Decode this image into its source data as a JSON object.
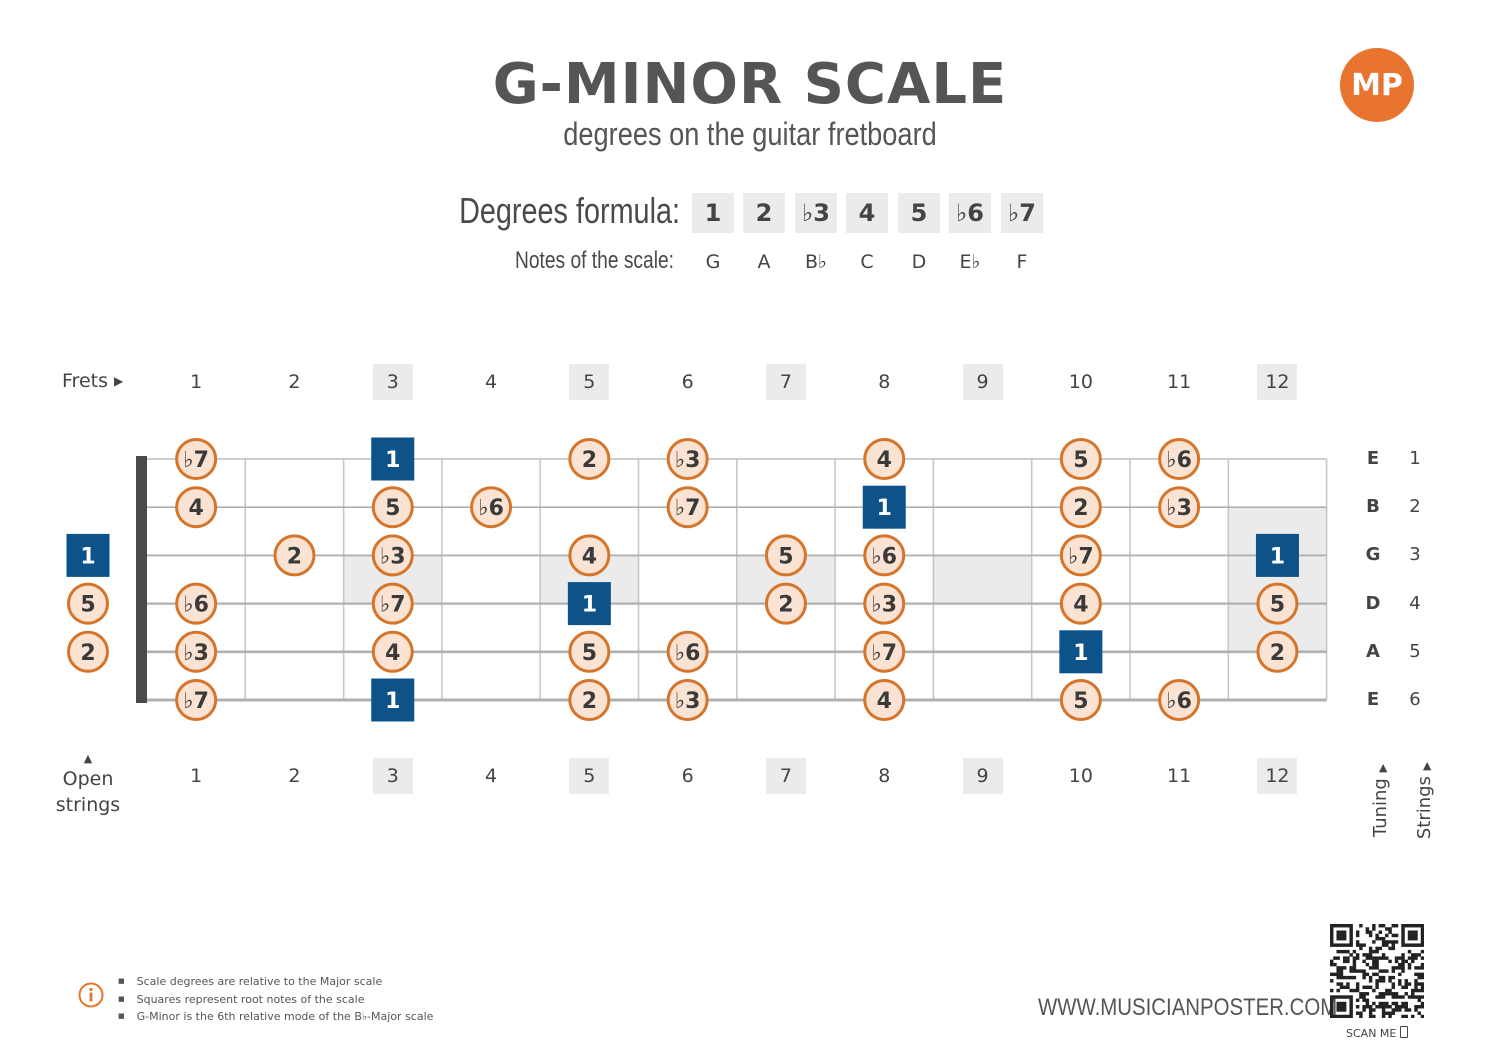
{
  "header": {
    "title": "G-MINOR SCALE",
    "subtitle": "degrees on the guitar fretboard",
    "logo_text": "MP"
  },
  "formula": {
    "degrees_label": "Degrees formula:",
    "notes_label": "Notes of the scale:",
    "degrees": [
      "1",
      "2",
      "♭3",
      "4",
      "5",
      "♭6",
      "♭7"
    ],
    "notes": [
      "G",
      "A",
      "B♭",
      "C",
      "D",
      "E♭",
      "F"
    ]
  },
  "fretboard": {
    "frets_label": "Frets",
    "open_label_line1": "Open",
    "open_label_line2": "strings",
    "tuning_label": "Tuning",
    "strings_label": "Strings",
    "fret_numbers": [
      "1",
      "2",
      "3",
      "4",
      "5",
      "6",
      "7",
      "8",
      "9",
      "10",
      "11",
      "12"
    ],
    "marker_frets": [
      3,
      5,
      7,
      9,
      12
    ],
    "tuning": [
      "E",
      "B",
      "G",
      "D",
      "A",
      "E"
    ],
    "string_numbers": [
      "1",
      "2",
      "3",
      "4",
      "5",
      "6"
    ],
    "notes": [
      {
        "string": 1,
        "fret": 1,
        "degree": "♭7"
      },
      {
        "string": 1,
        "fret": 3,
        "degree": "1"
      },
      {
        "string": 1,
        "fret": 5,
        "degree": "2"
      },
      {
        "string": 1,
        "fret": 6,
        "degree": "♭3"
      },
      {
        "string": 1,
        "fret": 8,
        "degree": "4"
      },
      {
        "string": 1,
        "fret": 10,
        "degree": "5"
      },
      {
        "string": 1,
        "fret": 11,
        "degree": "♭6"
      },
      {
        "string": 2,
        "fret": 1,
        "degree": "4"
      },
      {
        "string": 2,
        "fret": 3,
        "degree": "5"
      },
      {
        "string": 2,
        "fret": 4,
        "degree": "♭6"
      },
      {
        "string": 2,
        "fret": 6,
        "degree": "♭7"
      },
      {
        "string": 2,
        "fret": 8,
        "degree": "1"
      },
      {
        "string": 2,
        "fret": 10,
        "degree": "2"
      },
      {
        "string": 2,
        "fret": 11,
        "degree": "♭3"
      },
      {
        "string": 3,
        "fret": 0,
        "degree": "1"
      },
      {
        "string": 3,
        "fret": 2,
        "degree": "2"
      },
      {
        "string": 3,
        "fret": 3,
        "degree": "♭3"
      },
      {
        "string": 3,
        "fret": 5,
        "degree": "4"
      },
      {
        "string": 3,
        "fret": 7,
        "degree": "5"
      },
      {
        "string": 3,
        "fret": 8,
        "degree": "♭6"
      },
      {
        "string": 3,
        "fret": 10,
        "degree": "♭7"
      },
      {
        "string": 3,
        "fret": 12,
        "degree": "1"
      },
      {
        "string": 4,
        "fret": 0,
        "degree": "5"
      },
      {
        "string": 4,
        "fret": 1,
        "degree": "♭6"
      },
      {
        "string": 4,
        "fret": 3,
        "degree": "♭7"
      },
      {
        "string": 4,
        "fret": 5,
        "degree": "1"
      },
      {
        "string": 4,
        "fret": 7,
        "degree": "2"
      },
      {
        "string": 4,
        "fret": 8,
        "degree": "♭3"
      },
      {
        "string": 4,
        "fret": 10,
        "degree": "4"
      },
      {
        "string": 4,
        "fret": 12,
        "degree": "5"
      },
      {
        "string": 5,
        "fret": 0,
        "degree": "2"
      },
      {
        "string": 5,
        "fret": 1,
        "degree": "♭3"
      },
      {
        "string": 5,
        "fret": 3,
        "degree": "4"
      },
      {
        "string": 5,
        "fret": 5,
        "degree": "5"
      },
      {
        "string": 5,
        "fret": 6,
        "degree": "♭6"
      },
      {
        "string": 5,
        "fret": 8,
        "degree": "♭7"
      },
      {
        "string": 5,
        "fret": 10,
        "degree": "1"
      },
      {
        "string": 5,
        "fret": 12,
        "degree": "2"
      },
      {
        "string": 6,
        "fret": 1,
        "degree": "♭7"
      },
      {
        "string": 6,
        "fret": 3,
        "degree": "1"
      },
      {
        "string": 6,
        "fret": 5,
        "degree": "2"
      },
      {
        "string": 6,
        "fret": 6,
        "degree": "♭3"
      },
      {
        "string": 6,
        "fret": 8,
        "degree": "4"
      },
      {
        "string": 6,
        "fret": 10,
        "degree": "5"
      },
      {
        "string": 6,
        "fret": 11,
        "degree": "♭6"
      }
    ]
  },
  "colors": {
    "root_fill": "#0d5289",
    "circle_fill": "#fbe3d3",
    "circle_stroke": "#d5752b",
    "accent": "#e8742f"
  },
  "footer": {
    "notes": [
      "Scale degrees are relative to the Major scale",
      "Squares represent root notes of the scale",
      "G-Minor is the 6th relative mode of the B♭-Major scale"
    ],
    "website": "WWW.MUSICIANPOSTER.COM",
    "scan_label": "SCAN ME"
  }
}
